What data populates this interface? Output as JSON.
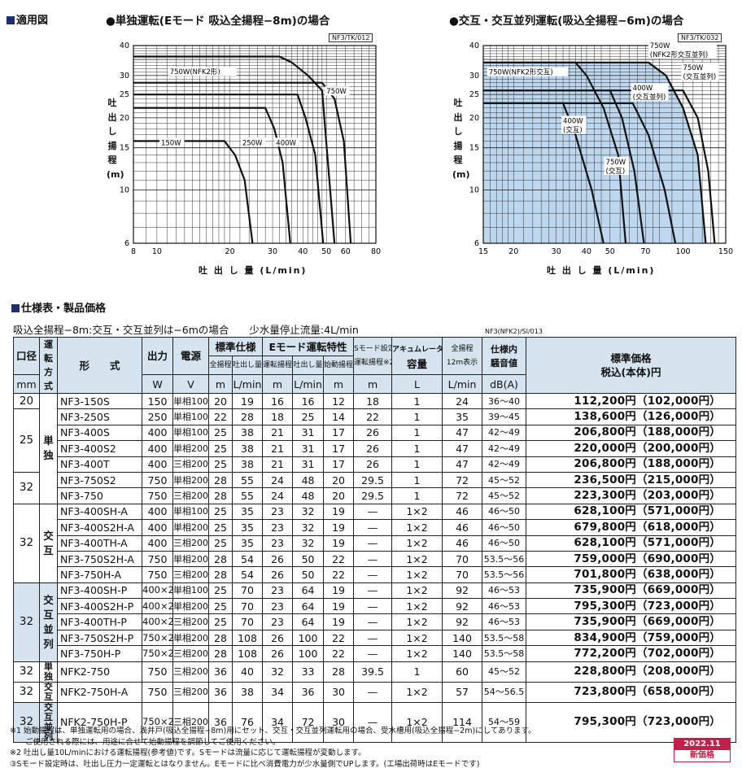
{
  "section1": {
    "title": "適用図"
  },
  "charts": {
    "left": {
      "title": "●単独運転(Eモード 吸込全揚程−8m)の場合",
      "code": "NF3/TK/012",
      "ylabel": "吐出し揚程(m)",
      "xlabel": "吐 出 し 量 (L/min)"
    },
    "right": {
      "title": "●交互・交互並列運転(吸込全揚程−6m)の場合",
      "code": "NF3/TK/032",
      "ylabel": "吐出し揚程(m)",
      "xlabel": "吐 出 し 量 (L/min)"
    }
  },
  "chart_data": [
    {
      "type": "line",
      "title": "●単独運転(Eモード 吸込全揚程−8m)の場合",
      "xlabel": "吐出し量 (L/min)",
      "ylabel": "吐出し揚程 (m)",
      "x_scale": "log",
      "y_scale": "log",
      "xlim": [
        8,
        80
      ],
      "ylim": [
        6,
        40
      ],
      "x_ticks": [
        "8",
        "10",
        "20",
        "30",
        "40",
        "50",
        "60",
        "80"
      ],
      "y_ticks": [
        "6",
        "10",
        "15",
        "20",
        "25",
        "30",
        "40"
      ],
      "grid": true,
      "series": [
        {
          "name": "150W",
          "x": [
            8,
            19,
            21,
            23,
            24.8
          ],
          "y": [
            16,
            16,
            14,
            11,
            6
          ]
        },
        {
          "name": "250W",
          "x": [
            8,
            28,
            30.5,
            33,
            35.5
          ],
          "y": [
            22,
            22,
            18,
            13,
            6
          ]
        },
        {
          "name": "400W",
          "x": [
            8,
            38,
            41,
            45,
            48.5
          ],
          "y": [
            25,
            25,
            20,
            14,
            6
          ]
        },
        {
          "name": "750W(NFK2形)",
          "x": [
            8,
            32,
            36,
            42,
            48,
            54
          ],
          "y": [
            36,
            36,
            34,
            30,
            26,
            6
          ]
        },
        {
          "name": "750W",
          "x": [
            8,
            48,
            54,
            59,
            63
          ],
          "y": [
            28,
            28,
            24,
            16,
            6
          ]
        }
      ]
    },
    {
      "type": "line",
      "title": "●交互・交互並列運転(吸込全揚程−6m)の場合",
      "xlabel": "吐出し量 (L/min)",
      "ylabel": "吐出し揚程 (m)",
      "x_scale": "log",
      "y_scale": "log",
      "xlim": [
        15,
        150
      ],
      "ylim": [
        6,
        40
      ],
      "x_ticks": [
        "15",
        "20",
        "30",
        "40",
        "50",
        "70",
        "100",
        "150"
      ],
      "y_ticks": [
        "6",
        "10",
        "15",
        "20",
        "25",
        "30",
        "40"
      ],
      "grid": true,
      "series": [
        {
          "name": "750W(NFK2形交互並列)",
          "x": [
            15,
            72,
            85,
            100,
            115,
            124
          ],
          "y": [
            34,
            34,
            30,
            22,
            14,
            6
          ]
        },
        {
          "name": "750W(NFK2形交互)",
          "x": [
            15,
            36,
            40,
            47,
            54,
            58
          ],
          "y": [
            34,
            34,
            30,
            22,
            14,
            6
          ]
        },
        {
          "name": "750W(交互並列)",
          "x": [
            15,
            100,
            115,
            127,
            135
          ],
          "y": [
            26,
            26,
            20,
            12,
            6
          ]
        },
        {
          "name": "400W(交互並列)",
          "x": [
            15,
            62,
            72,
            84,
            93
          ],
          "y": [
            23,
            23,
            17,
            10,
            6
          ]
        },
        {
          "name": "400W(交互)",
          "x": [
            15,
            32,
            36,
            42,
            47
          ],
          "y": [
            23,
            23,
            17,
            10,
            6
          ]
        },
        {
          "name": "750W(交互)",
          "x": [
            15,
            50,
            56,
            63,
            69
          ],
          "y": [
            26,
            26,
            20,
            12,
            6
          ]
        }
      ]
    }
  ],
  "section2": {
    "title": "仕様表・製品価格"
  },
  "spec": {
    "subtitle": "吸込全揚程−8m:交互・交互並列は−6mの場合　　少水量停止流量:4L/min",
    "code": "NF3(NFK2)/SI/013",
    "header": {
      "kokei": "口径",
      "mm": "mm",
      "unten": "運転方式",
      "keishiki": "形　　式",
      "output": "出力",
      "output_unit": "W",
      "power": "電源",
      "power_unit": "V",
      "std": "標準仕様",
      "std_head": "全揚程",
      "std_flow": "吐出し量",
      "emode": "Eモード運転特性",
      "e_head": "運転揚程",
      "e_flow": "吐出し量",
      "e_start": "始動揚程※1",
      "smode": "Sモード設定時",
      "s_head": "運転揚程※2",
      "accum": "アキュムレータ",
      "accum_cap": "容量",
      "total12": "全揚程",
      "total12b": "12m表示",
      "noise": "仕様内",
      "noise2": "騒音値",
      "price": "標準価格",
      "price2": "税込(本体)円",
      "u_m": "m",
      "u_lmin": "L/min",
      "u_l": "L",
      "u_db": "dB(A)"
    },
    "rows": [
      {
        "bore": "20",
        "mode": "",
        "model": "NF3-150S",
        "w": "150",
        "v": "単相100",
        "sh": "20",
        "sf": "19",
        "eh": "16",
        "ef": "16",
        "st": "12",
        "sm": "18",
        "ac": "1",
        "t12": "24",
        "db": "36〜40",
        "price": "112,200円（102,000円）"
      },
      {
        "bore": "25",
        "mode": "単独",
        "model": "NF3-250S",
        "w": "250",
        "v": "単相100",
        "sh": "22",
        "sf": "28",
        "eh": "18",
        "ef": "25",
        "st": "14",
        "sm": "22",
        "ac": "1",
        "t12": "35",
        "db": "39〜45",
        "price": "138,600円（126,000円）"
      },
      {
        "bore": "",
        "mode": "",
        "model": "NF3-400S",
        "w": "400",
        "v": "単相100",
        "sh": "25",
        "sf": "38",
        "eh": "21",
        "ef": "31",
        "st": "17",
        "sm": "26",
        "ac": "1",
        "t12": "47",
        "db": "42〜49",
        "price": "206,800円（188,000円）"
      },
      {
        "bore": "",
        "mode": "",
        "model": "NF3-400S2",
        "w": "400",
        "v": "単相200",
        "sh": "25",
        "sf": "38",
        "eh": "21",
        "ef": "31",
        "st": "17",
        "sm": "26",
        "ac": "1",
        "t12": "47",
        "db": "42〜49",
        "price": "220,000円（200,000円）"
      },
      {
        "bore": "",
        "mode": "",
        "model": "NF3-400T",
        "w": "400",
        "v": "三相200",
        "sh": "25",
        "sf": "38",
        "eh": "21",
        "ef": "31",
        "st": "17",
        "sm": "26",
        "ac": "1",
        "t12": "47",
        "db": "42〜49",
        "price": "206,800円（188,000円）"
      },
      {
        "bore": "32",
        "mode": "",
        "model": "NF3-750S2",
        "w": "750",
        "v": "単相200",
        "sh": "28",
        "sf": "55",
        "eh": "24",
        "ef": "48",
        "st": "20",
        "sm": "29.5",
        "ac": "1",
        "t12": "72",
        "db": "45〜52",
        "price": "236,500円（215,000円）"
      },
      {
        "bore": "",
        "mode": "",
        "model": "NF3-750",
        "w": "750",
        "v": "三相200",
        "sh": "28",
        "sf": "55",
        "eh": "24",
        "ef": "48",
        "st": "20",
        "sm": "29.5",
        "ac": "1",
        "t12": "72",
        "db": "45〜52",
        "price": "223,300円（203,000円）"
      },
      {
        "bore": "32",
        "mode": "交互",
        "model": "NF3-400SH-A",
        "w": "400",
        "v": "単相100",
        "sh": "25",
        "sf": "35",
        "eh": "23",
        "ef": "32",
        "st": "19",
        "sm": "—",
        "ac": "1×2",
        "t12": "46",
        "db": "46〜50",
        "price": "628,100円（571,000円）"
      },
      {
        "bore": "",
        "mode": "",
        "model": "NF3-400S2H-A",
        "w": "400",
        "v": "単相200",
        "sh": "25",
        "sf": "35",
        "eh": "23",
        "ef": "32",
        "st": "19",
        "sm": "—",
        "ac": "1×2",
        "t12": "46",
        "db": "46〜50",
        "price": "679,800円（618,000円）"
      },
      {
        "bore": "",
        "mode": "",
        "model": "NF3-400TH-A",
        "w": "400",
        "v": "三相200",
        "sh": "25",
        "sf": "35",
        "eh": "23",
        "ef": "32",
        "st": "19",
        "sm": "—",
        "ac": "1×2",
        "t12": "46",
        "db": "46〜50",
        "price": "628,100円（571,000円）"
      },
      {
        "bore": "",
        "mode": "",
        "model": "NF3-750S2H-A",
        "w": "750",
        "v": "単相200",
        "sh": "28",
        "sf": "54",
        "eh": "26",
        "ef": "50",
        "st": "22",
        "sm": "—",
        "ac": "1×2",
        "t12": "70",
        "db": "53.5〜56",
        "price": "759,000円（690,000円）"
      },
      {
        "bore": "",
        "mode": "",
        "model": "NF3-750H-A",
        "w": "750",
        "v": "三相200",
        "sh": "28",
        "sf": "54",
        "eh": "26",
        "ef": "50",
        "st": "22",
        "sm": "—",
        "ac": "1×2",
        "t12": "70",
        "db": "53.5〜56",
        "price": "701,800円（638,000円）"
      },
      {
        "bore": "32",
        "mode": "交互並列",
        "model": "NF3-400SH-P",
        "w": "400×2",
        "v": "単相100",
        "sh": "25",
        "sf": "70",
        "eh": "23",
        "ef": "64",
        "st": "19",
        "sm": "—",
        "ac": "1×2",
        "t12": "92",
        "db": "46〜53",
        "price": "735,900円（669,000円）"
      },
      {
        "bore": "",
        "mode": "",
        "model": "NF3-400S2H-P",
        "w": "400×2",
        "v": "単相200",
        "sh": "25",
        "sf": "70",
        "eh": "23",
        "ef": "64",
        "st": "19",
        "sm": "—",
        "ac": "1×2",
        "t12": "92",
        "db": "46〜53",
        "price": "795,300円（723,000円）"
      },
      {
        "bore": "",
        "mode": "",
        "model": "NF3-400TH-P",
        "w": "400×2",
        "v": "三相200",
        "sh": "25",
        "sf": "70",
        "eh": "23",
        "ef": "64",
        "st": "19",
        "sm": "—",
        "ac": "1×2",
        "t12": "92",
        "db": "46〜53",
        "price": "735,900円（669,000円）"
      },
      {
        "bore": "",
        "mode": "",
        "model": "NF3-750S2H-P",
        "w": "750×2",
        "v": "単相200",
        "sh": "28",
        "sf": "108",
        "eh": "26",
        "ef": "100",
        "st": "22",
        "sm": "—",
        "ac": "1×2",
        "t12": "140",
        "db": "53.5〜58",
        "price": "834,900円（759,000円）"
      },
      {
        "bore": "",
        "mode": "",
        "model": "NF3-750H-P",
        "w": "750×2",
        "v": "三相200",
        "sh": "28",
        "sf": "108",
        "eh": "26",
        "ef": "100",
        "st": "22",
        "sm": "—",
        "ac": "1×2",
        "t12": "140",
        "db": "53.5〜58",
        "price": "772,200円（702,000円）"
      },
      {
        "bore": "32",
        "mode": "単独",
        "model": "NFK2-750",
        "w": "750",
        "v": "三相200",
        "sh": "36",
        "sf": "40",
        "eh": "32",
        "ef": "33",
        "st": "28",
        "sm": "39.5",
        "ac": "1",
        "t12": "60",
        "db": "45〜52",
        "price": "228,800円（208,000円）"
      },
      {
        "bore": "32",
        "mode": "交互",
        "model": "NFK2-750H-A",
        "w": "750",
        "v": "三相200",
        "sh": "36",
        "sf": "38",
        "eh": "34",
        "ef": "36",
        "st": "30",
        "sm": "—",
        "ac": "1×2",
        "t12": "57",
        "db": "54〜56.5",
        "price": "723,800円（658,000円）"
      },
      {
        "bore": "32",
        "mode": "交互並列",
        "model": "NFK2-750H-P",
        "w": "750×2",
        "v": "三相200",
        "sh": "36",
        "sf": "76",
        "eh": "34",
        "ef": "72",
        "st": "30",
        "sm": "—",
        "ac": "1×2",
        "t12": "114",
        "db": "54〜59",
        "price": "795,300円（723,000円）"
      }
    ]
  },
  "notes": [
    "※1 始動揚程は、単独運転用の場合、浅井戸(吸込全揚程−8m)用にセット、交互・交互並列運転用の場合、受水槽用(吸込全揚程−2m)にしてあります。",
    "　　ご使用される際には、用途に合せて始動揚程を調節してご使用ください。",
    "※2 吐出し量10L/minにおける運転揚程(参考値)です。Sモードは流量に応じて運転揚程が変動します。",
    "③Sモード設定時は、吐出し圧力一定運転とはなりません。Eモードに比べ消費電力が少水量側でUPします。(工場出荷時はEモードです)"
  ],
  "badge": {
    "date": "2022.11",
    "label": "新価格"
  }
}
